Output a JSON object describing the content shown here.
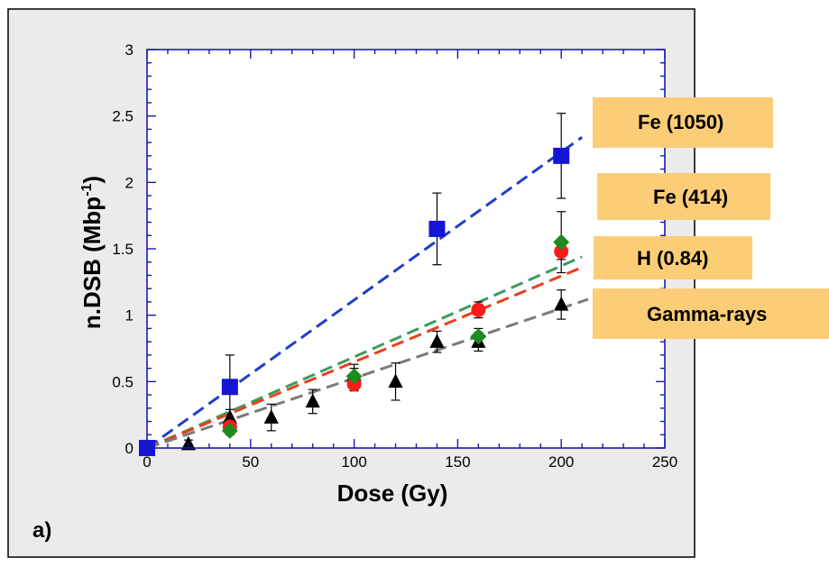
{
  "chart_data": {
    "type": "scatter",
    "panel_label": "a)",
    "xlabel": "Dose (Gy)",
    "ylabel_main": "n.DSB (Mbp",
    "ylabel_sup": "-1",
    "ylabel_close": ")",
    "xlim": [
      0,
      250
    ],
    "ylim": [
      0,
      3
    ],
    "xticks": [
      0,
      50,
      100,
      150,
      200,
      250
    ],
    "yticks": [
      0,
      0.5,
      1,
      1.5,
      2,
      2.5,
      3
    ],
    "grid": false,
    "legend_position": "right",
    "series": [
      {
        "name": "Fe (1050)",
        "marker": "square",
        "color": "#1515d6",
        "fit_color": "#1f3fc8",
        "points": [
          {
            "x": 0,
            "y": 0.0,
            "err": 0.0
          },
          {
            "x": 40,
            "y": 0.46,
            "err": 0.24
          },
          {
            "x": 140,
            "y": 1.65,
            "err": 0.27
          },
          {
            "x": 200,
            "y": 2.2,
            "err": 0.32
          }
        ],
        "fit": {
          "x0": 0,
          "y0": 0.0,
          "x1": 210,
          "y1": 2.34
        }
      },
      {
        "name": "Fe (414)",
        "marker": "diamond",
        "color": "#1d8a1d",
        "fit_color": "#3d9a5f",
        "points": [
          {
            "x": 40,
            "y": 0.13,
            "err": 0.03
          },
          {
            "x": 100,
            "y": 0.54,
            "err": 0.06
          },
          {
            "x": 160,
            "y": 0.84,
            "err": 0.06
          },
          {
            "x": 200,
            "y": 1.55,
            "err": 0.23
          }
        ],
        "fit": {
          "x0": 0,
          "y0": 0.0,
          "x1": 210,
          "y1": 1.44
        }
      },
      {
        "name": "H (0.84)",
        "marker": "circle",
        "color": "#ff1a1a",
        "fit_color": "#e8401a",
        "points": [
          {
            "x": 0,
            "y": 0.0,
            "err": 0.0
          },
          {
            "x": 40,
            "y": 0.16,
            "err": 0.03
          },
          {
            "x": 100,
            "y": 0.48,
            "err": 0.05
          },
          {
            "x": 160,
            "y": 1.04,
            "err": 0.06
          },
          {
            "x": 200,
            "y": 1.48,
            "err": 0.06
          }
        ],
        "fit": {
          "x0": 0,
          "y0": 0.0,
          "x1": 210,
          "y1": 1.36
        }
      },
      {
        "name": "Gamma-rays",
        "marker": "triangle",
        "color": "#000000",
        "fit_color": "#7a7a7a",
        "points": [
          {
            "x": 0,
            "y": 0.0,
            "err": 0.0
          },
          {
            "x": 20,
            "y": 0.03,
            "err": 0.03
          },
          {
            "x": 40,
            "y": 0.23,
            "err": 0.06
          },
          {
            "x": 60,
            "y": 0.23,
            "err": 0.1
          },
          {
            "x": 80,
            "y": 0.35,
            "err": 0.09
          },
          {
            "x": 100,
            "y": 0.55,
            "err": 0.08
          },
          {
            "x": 120,
            "y": 0.5,
            "err": 0.14
          },
          {
            "x": 140,
            "y": 0.8,
            "err": 0.08
          },
          {
            "x": 160,
            "y": 0.8,
            "err": 0.07
          },
          {
            "x": 200,
            "y": 1.08,
            "err": 0.11
          }
        ],
        "fit": {
          "x0": 0,
          "y0": 0.0,
          "x1": 213,
          "y1": 1.12
        }
      }
    ]
  }
}
